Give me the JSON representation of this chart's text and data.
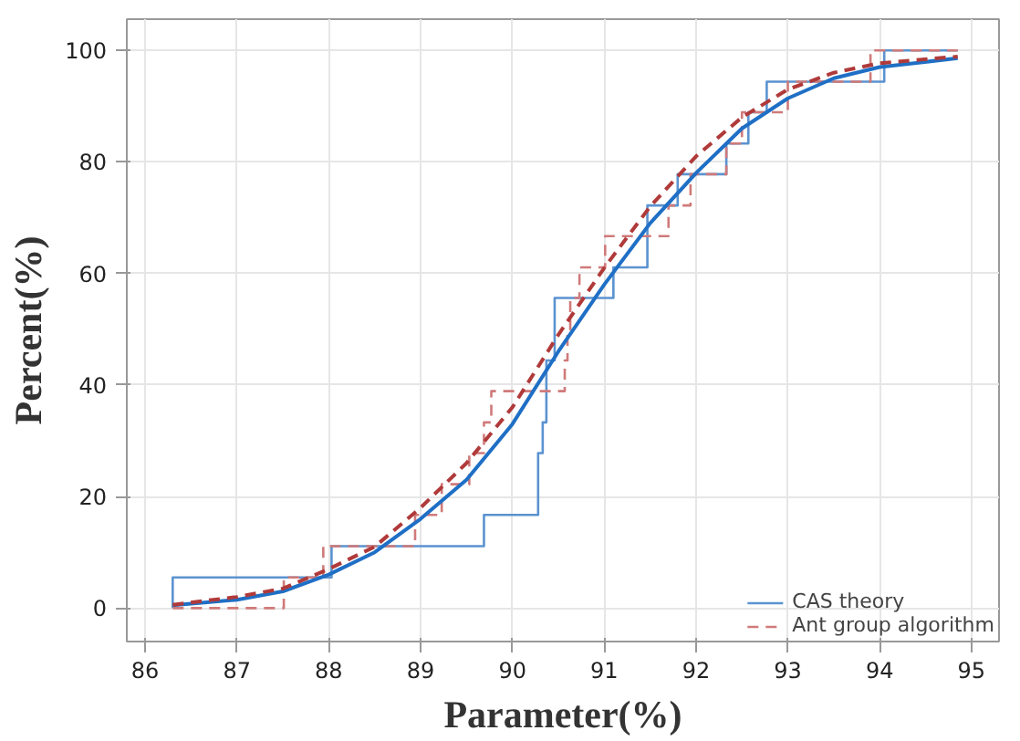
{
  "chart_data": {
    "type": "step",
    "xlabel": "Parameter(%)",
    "ylabel": "Percent(%)",
    "xlim": [
      85.8,
      95.3
    ],
    "ylim": [
      -6,
      105.6
    ],
    "xticks": [
      86,
      87,
      88,
      89,
      90,
      91,
      92,
      93,
      94,
      95
    ],
    "yticks": [
      0,
      20,
      40,
      60,
      80,
      100
    ],
    "grid": true,
    "legend": "bottom right",
    "series": [
      {
        "name": "CAS theory",
        "color": "#5b93d0",
        "line_style": "solid",
        "x": [
          86.3,
          86.3,
          88.03,
          89.69,
          90.28,
          90.33,
          90.37,
          90.46,
          91.1,
          91.47,
          91.8,
          92.33,
          92.57,
          92.77,
          94.05,
          94.85
        ],
        "values": [
          0,
          5.5,
          11.1,
          16.7,
          27.8,
          33.3,
          44.4,
          55.6,
          61.1,
          72.2,
          77.8,
          83.3,
          88.9,
          94.4,
          100,
          100
        ]
      },
      {
        "name": "Ant group algorithm",
        "color": "#d07a7a",
        "line_style": "dashed",
        "x": [
          86.3,
          87.51,
          87.94,
          88.94,
          89.23,
          89.53,
          89.69,
          89.77,
          90.57,
          90.6,
          90.63,
          90.73,
          91.01,
          91.7,
          91.94,
          92.33,
          92.5,
          93.0,
          93.9,
          94.85
        ],
        "values": [
          0,
          5.5,
          11.1,
          16.7,
          22.2,
          27.8,
          33.3,
          38.9,
          44.4,
          50,
          55.6,
          61.1,
          66.7,
          72.2,
          77.8,
          83.3,
          88.9,
          94.4,
          100,
          100
        ]
      },
      {
        "type": "line",
        "color": "#1f6fc5",
        "line_style": "solid",
        "x": [
          86.3,
          87,
          87.5,
          88,
          88.5,
          89,
          89.5,
          90,
          90.5,
          91,
          91.5,
          92,
          92.5,
          93,
          93.5,
          94,
          94.85
        ],
        "values": [
          0.5,
          1.5,
          3,
          6,
          10,
          16,
          23,
          33,
          46,
          58,
          69,
          78,
          86,
          91.4,
          95,
          97,
          98.6
        ]
      },
      {
        "type": "line",
        "color": "#b03a3a",
        "line_style": "dashed",
        "x": [
          86.3,
          87,
          87.5,
          88,
          88.5,
          89,
          89.5,
          90,
          90.5,
          91,
          91.5,
          92,
          92.5,
          93,
          93.5,
          94,
          94.85
        ],
        "values": [
          0.6,
          2,
          3.5,
          7,
          11,
          18,
          26,
          36,
          49,
          61,
          72,
          81,
          88,
          93,
          96,
          97.7,
          98.9
        ]
      }
    ]
  }
}
